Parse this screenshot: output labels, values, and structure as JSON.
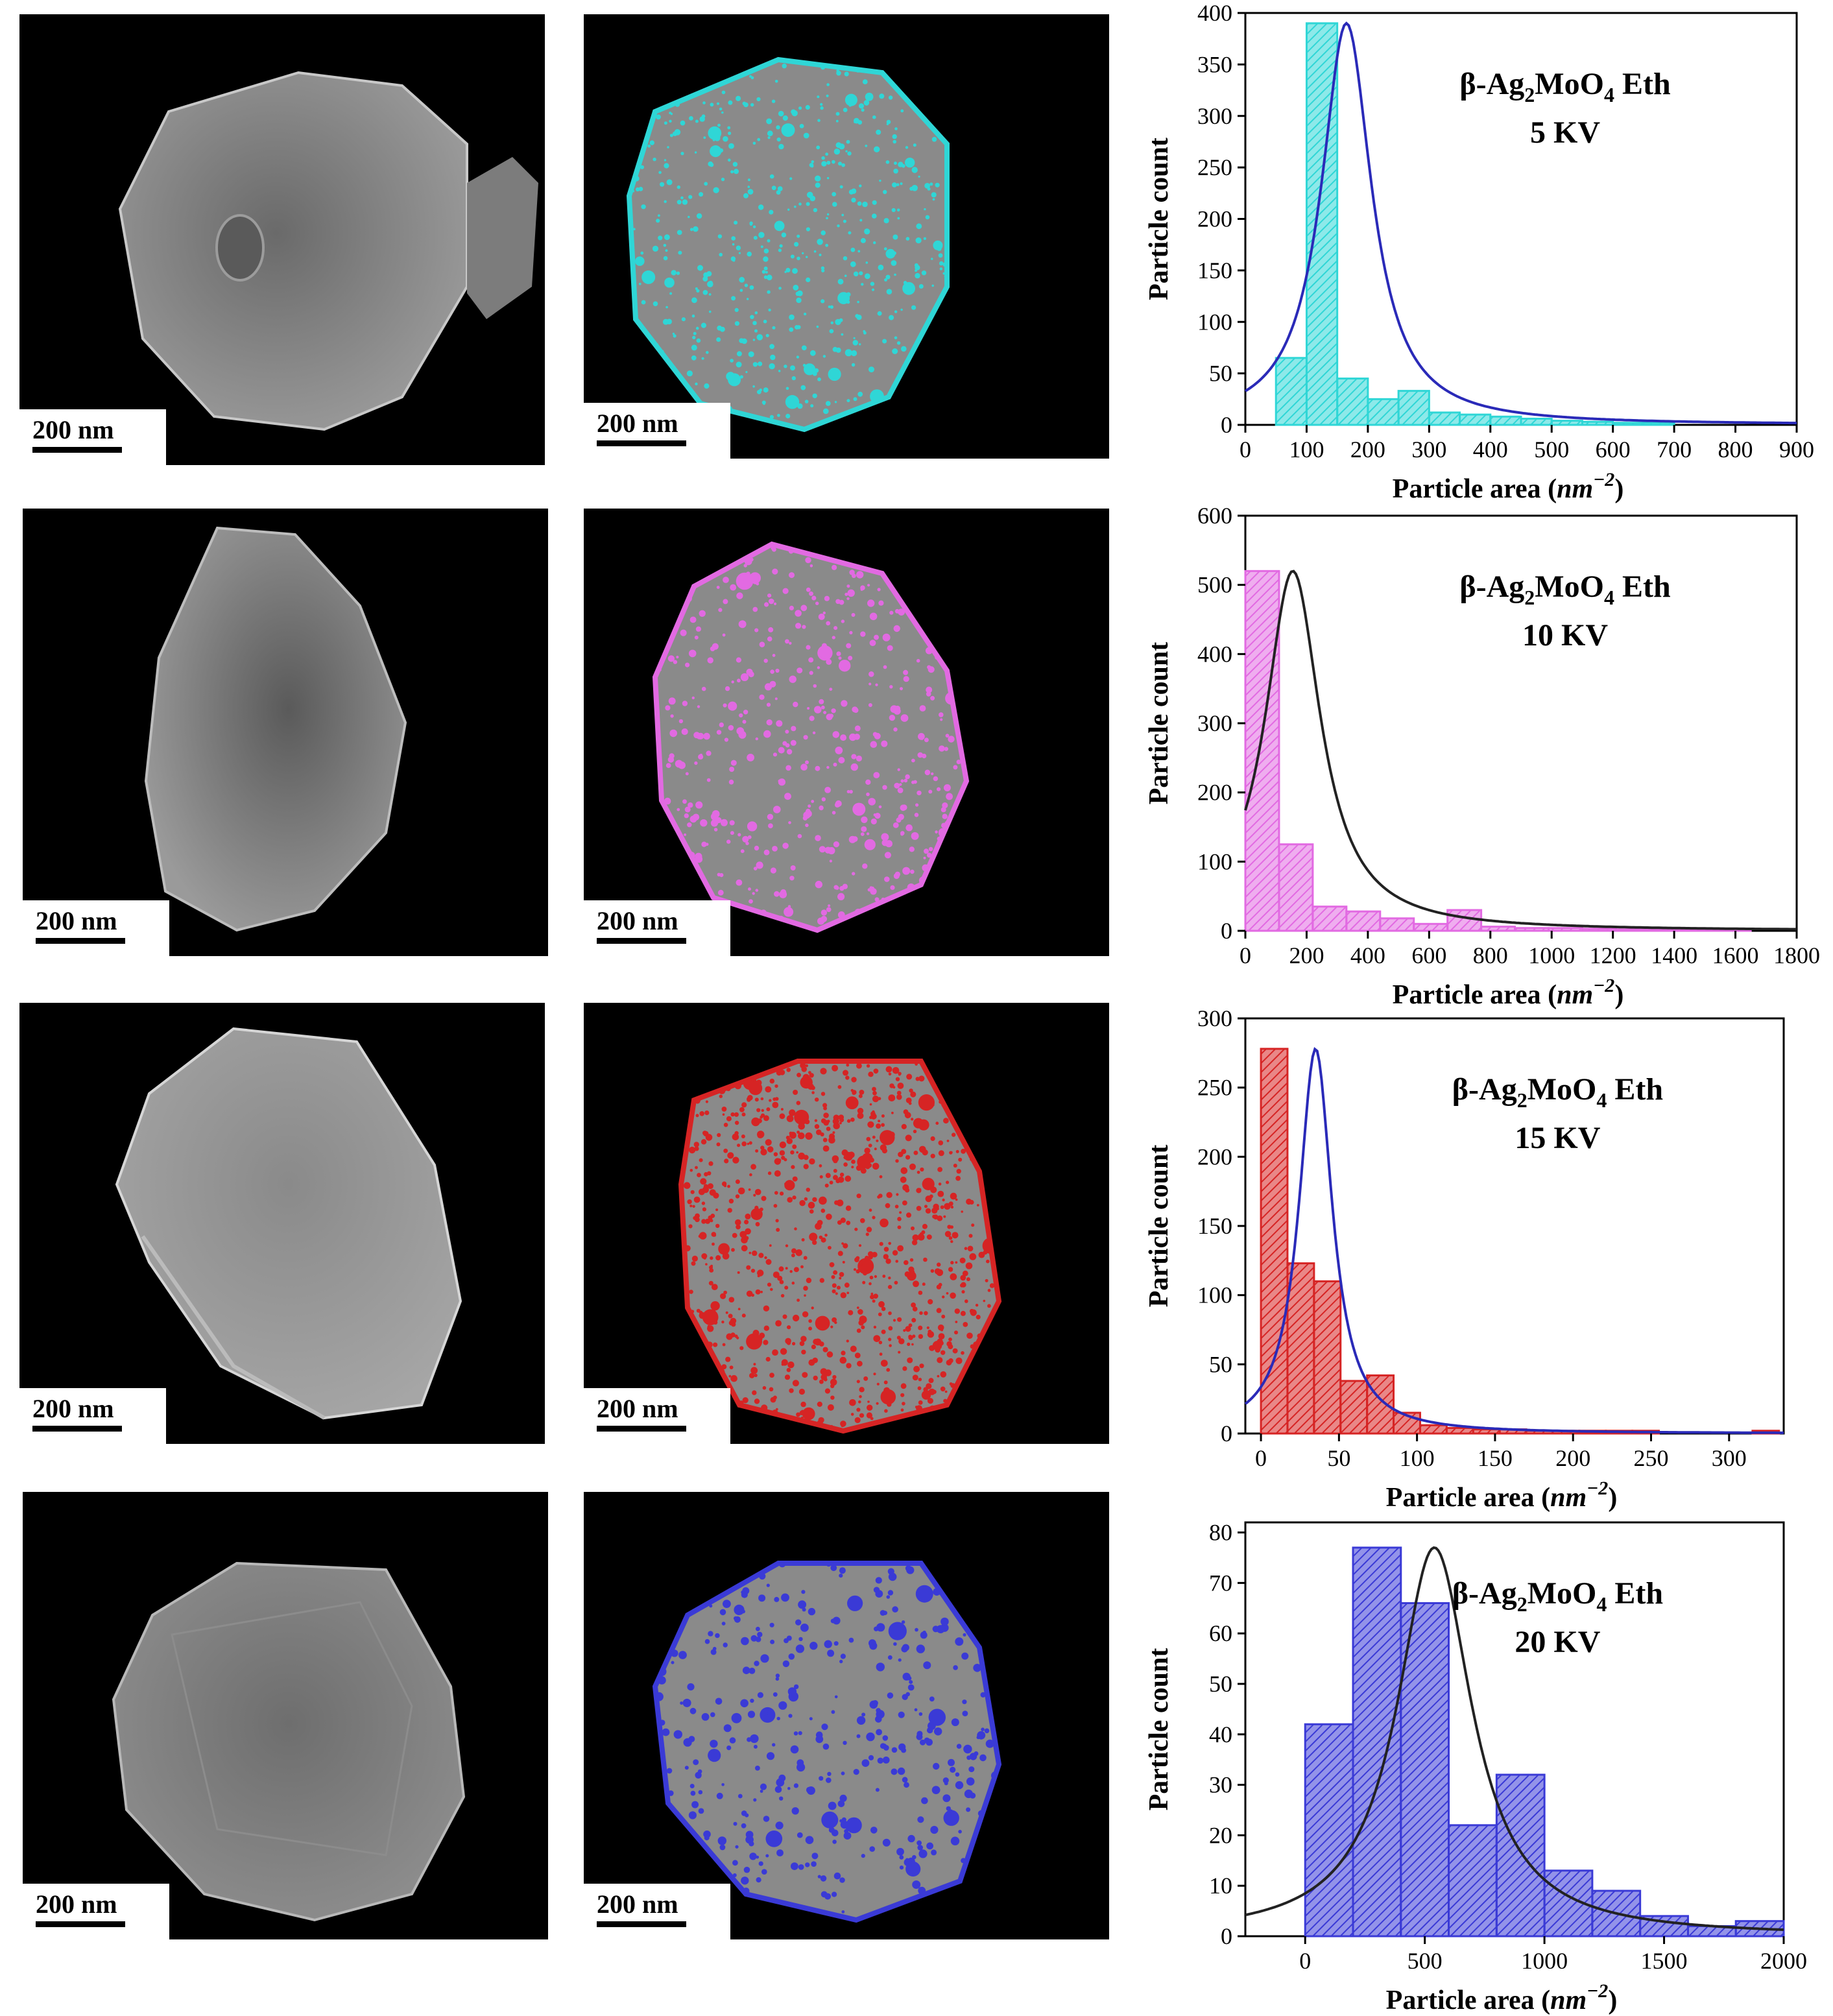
{
  "scale_bar_label": "200 nm",
  "colors": {
    "cyan": "#2fd6d6",
    "magenta": "#e26ae2",
    "red": "#d62424",
    "blue": "#3a3ad6",
    "curve_blue": "#2a2ab8",
    "curve_black": "#222222"
  },
  "chart_data": [
    {
      "type": "bar",
      "title": "β-Ag2MoO4 Eth",
      "title_parts": {
        "beta": "β-Ag",
        "sub1": "2",
        "mid": "MoO",
        "sub2": "4",
        "tail": " Eth"
      },
      "subtitle": "5 KV",
      "xlabel": "Particle area (nm−2)",
      "xlabel_parts": {
        "prefix": "Particle area (",
        "unit": "nm",
        "exp": "−2",
        "suffix": ")"
      },
      "ylabel": "Particle count",
      "xlim": [
        0,
        900
      ],
      "ylim": [
        0,
        400
      ],
      "xticks": [
        0,
        100,
        200,
        300,
        400,
        500,
        600,
        700,
        800,
        900
      ],
      "yticks": [
        0,
        50,
        100,
        150,
        200,
        250,
        300,
        350,
        400
      ],
      "bins": [
        [
          50,
          100
        ],
        [
          100,
          150
        ],
        [
          150,
          200
        ],
        [
          200,
          250
        ],
        [
          250,
          300
        ],
        [
          300,
          350
        ],
        [
          350,
          400
        ],
        [
          400,
          450
        ],
        [
          450,
          500
        ],
        [
          500,
          550
        ],
        [
          550,
          600
        ],
        [
          600,
          650
        ],
        [
          650,
          700
        ]
      ],
      "values": [
        65,
        390,
        45,
        25,
        33,
        12,
        10,
        8,
        6,
        4,
        3,
        2,
        2
      ],
      "bar_color": "#2fd6d6",
      "fit": {
        "type": "lorentzian",
        "peak_x": 165,
        "peak_y": 390,
        "width": 50,
        "baseline": 0,
        "color": "#2a2ab8"
      }
    },
    {
      "type": "bar",
      "title": "β-Ag2MoO4 Eth",
      "title_parts": {
        "beta": "β-Ag",
        "sub1": "2",
        "mid": "MoO",
        "sub2": "4",
        "tail": " Eth"
      },
      "subtitle": "10 KV",
      "xlabel": "Particle area (nm−2)",
      "xlabel_parts": {
        "prefix": "Particle area (",
        "unit": "nm",
        "exp": "−2",
        "suffix": ")"
      },
      "ylabel": "Particle count",
      "xlim": [
        0,
        1800
      ],
      "ylim": [
        0,
        600
      ],
      "xticks": [
        0,
        200,
        400,
        600,
        800,
        1000,
        1200,
        1400,
        1600,
        1800
      ],
      "yticks": [
        0,
        100,
        200,
        300,
        400,
        500,
        600
      ],
      "bins": [
        [
          0,
          110
        ],
        [
          110,
          220
        ],
        [
          220,
          330
        ],
        [
          330,
          440
        ],
        [
          440,
          550
        ],
        [
          550,
          660
        ],
        [
          660,
          770
        ],
        [
          770,
          880
        ],
        [
          880,
          990
        ],
        [
          990,
          1100
        ],
        [
          1100,
          1210
        ],
        [
          1210,
          1320
        ],
        [
          1320,
          1430
        ],
        [
          1430,
          1540
        ],
        [
          1540,
          1650
        ]
      ],
      "values": [
        520,
        125,
        35,
        28,
        18,
        10,
        30,
        6,
        4,
        4,
        3,
        2,
        2,
        2,
        2
      ],
      "bar_color": "#e26ae2",
      "fit": {
        "type": "lorentzian",
        "peak_x": 155,
        "peak_y": 520,
        "width": 110,
        "baseline": 0,
        "color": "#222222"
      }
    },
    {
      "type": "bar",
      "title": "β-Ag2MoO4 Eth",
      "title_parts": {
        "beta": "β-Ag",
        "sub1": "2",
        "mid": "MoO",
        "sub2": "4",
        "tail": " Eth"
      },
      "subtitle": "15 KV",
      "xlabel": "Particle area (nm−2)",
      "xlabel_parts": {
        "prefix": "Particle area (",
        "unit": "nm",
        "exp": "−2",
        "suffix": ")"
      },
      "ylabel": "Particle count",
      "xlim": [
        -10,
        335
      ],
      "ylim": [
        0,
        300
      ],
      "xticks": [
        0,
        50,
        100,
        150,
        200,
        250,
        300
      ],
      "xtick_labels": [
        "0",
        "50",
        "100",
        "150",
        "200",
        "250",
        "300"
      ],
      "yticks": [
        0,
        50,
        100,
        150,
        200,
        250,
        300
      ],
      "extra_xtick_labels": [
        {
          "x": 0,
          "label": "0"
        },
        {
          "x": 50,
          "label": "50"
        },
        {
          "x": 100,
          "label": "100"
        }
      ],
      "bins": [
        [
          0,
          17
        ],
        [
          17,
          34
        ],
        [
          34,
          51
        ],
        [
          51,
          68
        ],
        [
          68,
          85
        ],
        [
          85,
          102
        ],
        [
          102,
          119
        ],
        [
          119,
          136
        ],
        [
          136,
          153
        ],
        [
          153,
          170
        ],
        [
          170,
          187
        ],
        [
          187,
          204
        ],
        [
          204,
          221
        ],
        [
          221,
          238
        ],
        [
          238,
          255
        ],
        [
          315,
          332
        ]
      ],
      "values": [
        278,
        123,
        110,
        38,
        42,
        15,
        6,
        4,
        3,
        3,
        2,
        2,
        2,
        2,
        2,
        2
      ],
      "bar_color": "#d62424",
      "fit": {
        "type": "lorentzian",
        "peak_x": 35,
        "peak_y": 278,
        "width": 13,
        "baseline": 0,
        "color": "#2a2ab8"
      }
    },
    {
      "type": "bar",
      "title": "β-Ag2MoO4 Eth",
      "title_parts": {
        "beta": "β-Ag",
        "sub1": "2",
        "mid": "MoO",
        "sub2": "4",
        "tail": " Eth"
      },
      "subtitle": "20 KV",
      "xlabel": "Particle area (nm−2)",
      "xlabel_parts": {
        "prefix": "Particle area (",
        "unit": "nm",
        "exp": "−2",
        "suffix": ")"
      },
      "ylabel": "Particle count",
      "xlim": [
        -250,
        2000
      ],
      "ylim": [
        0,
        82
      ],
      "xticks": [
        0,
        500,
        1000,
        1500,
        2000
      ],
      "yticks": [
        0,
        10,
        20,
        30,
        40,
        50,
        60,
        70,
        80
      ],
      "bins": [
        [
          0,
          200
        ],
        [
          200,
          400
        ],
        [
          400,
          600
        ],
        [
          600,
          800
        ],
        [
          800,
          1000
        ],
        [
          1000,
          1200
        ],
        [
          1200,
          1400
        ],
        [
          1400,
          1600
        ],
        [
          1600,
          1800
        ],
        [
          1800,
          2000
        ]
      ],
      "values": [
        42,
        77,
        66,
        22,
        32,
        13,
        9,
        4,
        2,
        3
      ],
      "bar_color": "#3a3ad6",
      "fit": {
        "type": "lorentzian",
        "peak_x": 540,
        "peak_y": 77,
        "width": 190,
        "baseline": 0,
        "color": "#222222"
      }
    }
  ]
}
